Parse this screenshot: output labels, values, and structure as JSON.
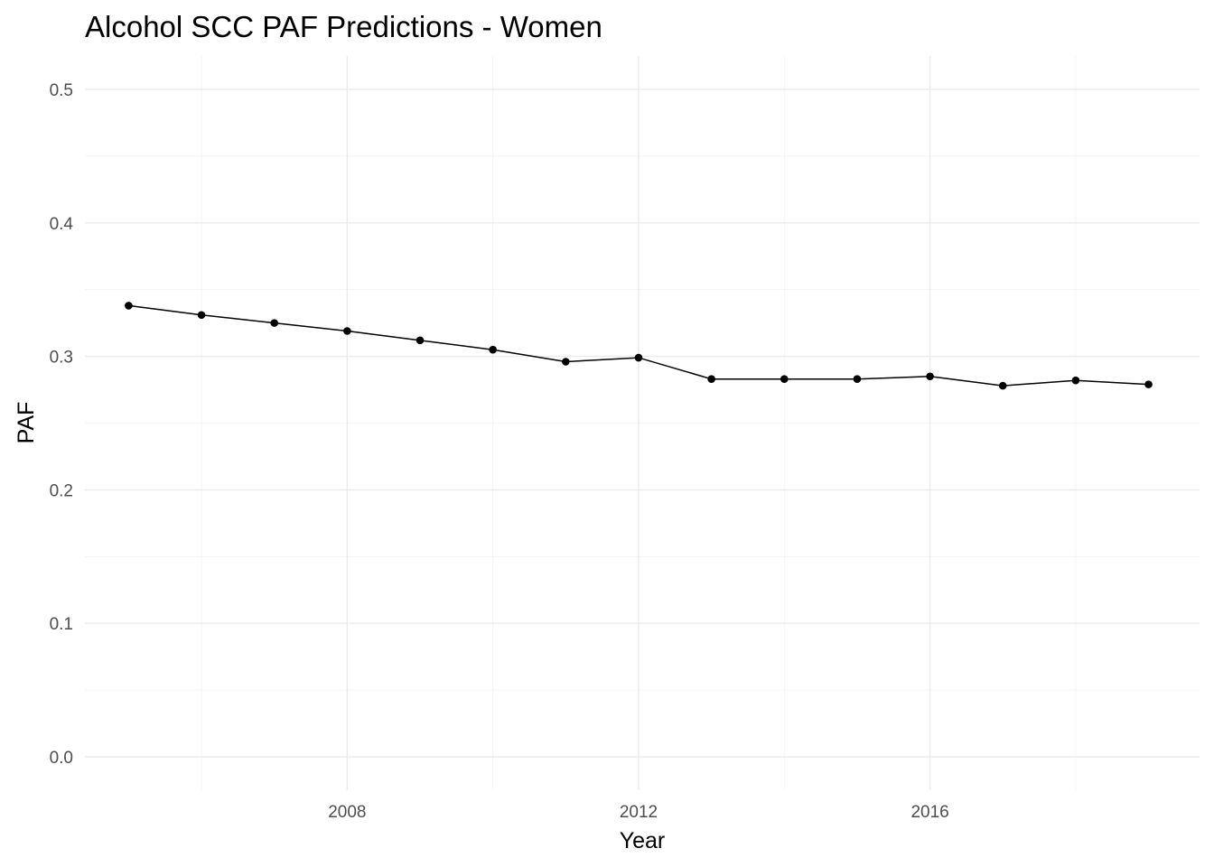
{
  "chart_data": {
    "type": "line",
    "title": "Alcohol SCC PAF Predictions - Women",
    "xlabel": "Year",
    "ylabel": "PAF",
    "x": [
      2005,
      2006,
      2007,
      2008,
      2009,
      2010,
      2011,
      2012,
      2013,
      2014,
      2015,
      2016,
      2017,
      2018,
      2019
    ],
    "series": [
      {
        "values": [
          0.338,
          0.331,
          0.325,
          0.319,
          0.312,
          0.305,
          0.296,
          0.299,
          0.283,
          0.283,
          0.283,
          0.285,
          0.278,
          0.282,
          0.279
        ]
      }
    ],
    "xlim": [
      2004.4,
      2019.7
    ],
    "ylim": [
      -0.025,
      0.525
    ],
    "x_ticks": [
      2008,
      2012,
      2016
    ],
    "x_tick_labels": [
      "2008",
      "2012",
      "2016"
    ],
    "x_minor_ticks": [
      2006,
      2010,
      2014,
      2018
    ],
    "y_ticks": [
      0.0,
      0.1,
      0.2,
      0.3,
      0.4,
      0.5
    ],
    "y_tick_labels": [
      "0.0",
      "0.1",
      "0.2",
      "0.3",
      "0.4",
      "0.5"
    ],
    "y_minor_ticks": [
      0.05,
      0.15,
      0.25,
      0.35,
      0.45
    ],
    "grid": true,
    "legend": "none",
    "colors": {
      "line": "#000000",
      "point": "#000000",
      "grid_major": "#ebebeb",
      "grid_minor": "#f2f2f2",
      "tick_text": "#4d4d4d"
    }
  }
}
